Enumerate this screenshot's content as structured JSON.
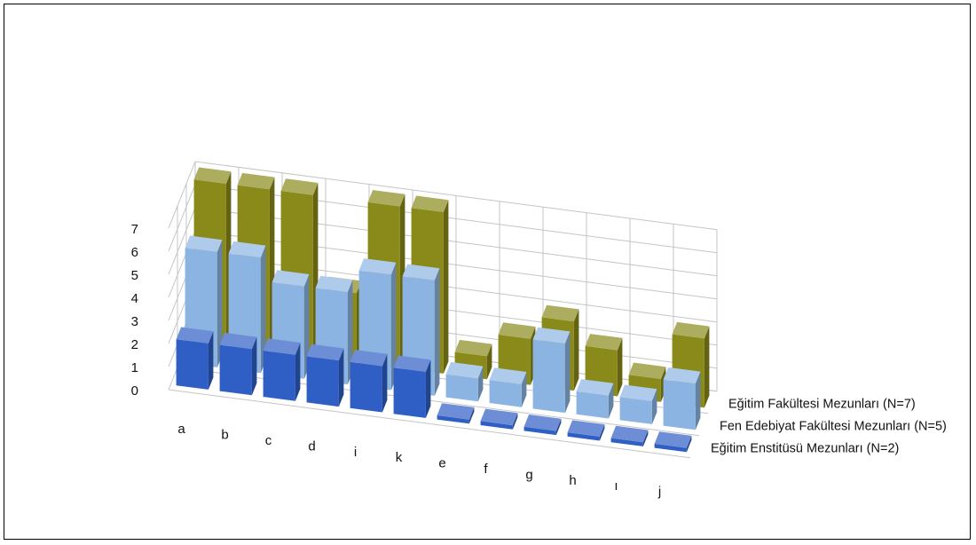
{
  "chart_data": {
    "type": "bar",
    "title": "",
    "xlabel": "",
    "ylabel": "",
    "ylim": [
      0,
      7
    ],
    "yticks": [
      "0",
      "1",
      "2",
      "3",
      "4",
      "5",
      "6",
      "7"
    ],
    "grid": true,
    "legend_position": "right",
    "categories": [
      "a",
      "b",
      "c",
      "d",
      "i",
      "k",
      "e",
      "f",
      "g",
      "h",
      "ı",
      "j"
    ],
    "series": [
      {
        "name": "Eğitim Fakültesi Mezunları (N=7)",
        "color": "#8a8a1a",
        "values": [
          7,
          7,
          7,
          3,
          7,
          7,
          1,
          2,
          3,
          2,
          1,
          3
        ]
      },
      {
        "name": "Fen Edebiyat Fakültesi Mezunları (N=5)",
        "color": "#8cb4e2",
        "values": [
          5,
          5,
          4,
          4,
          5,
          5,
          1,
          1,
          3,
          1,
          1,
          2
        ]
      },
      {
        "name": "Eğitim Enstitüsü Mezunları (N=2)",
        "color": "#2f5ec4",
        "values": [
          2,
          2,
          2,
          2,
          2,
          2,
          0,
          0,
          0,
          0,
          0,
          0
        ]
      }
    ]
  }
}
